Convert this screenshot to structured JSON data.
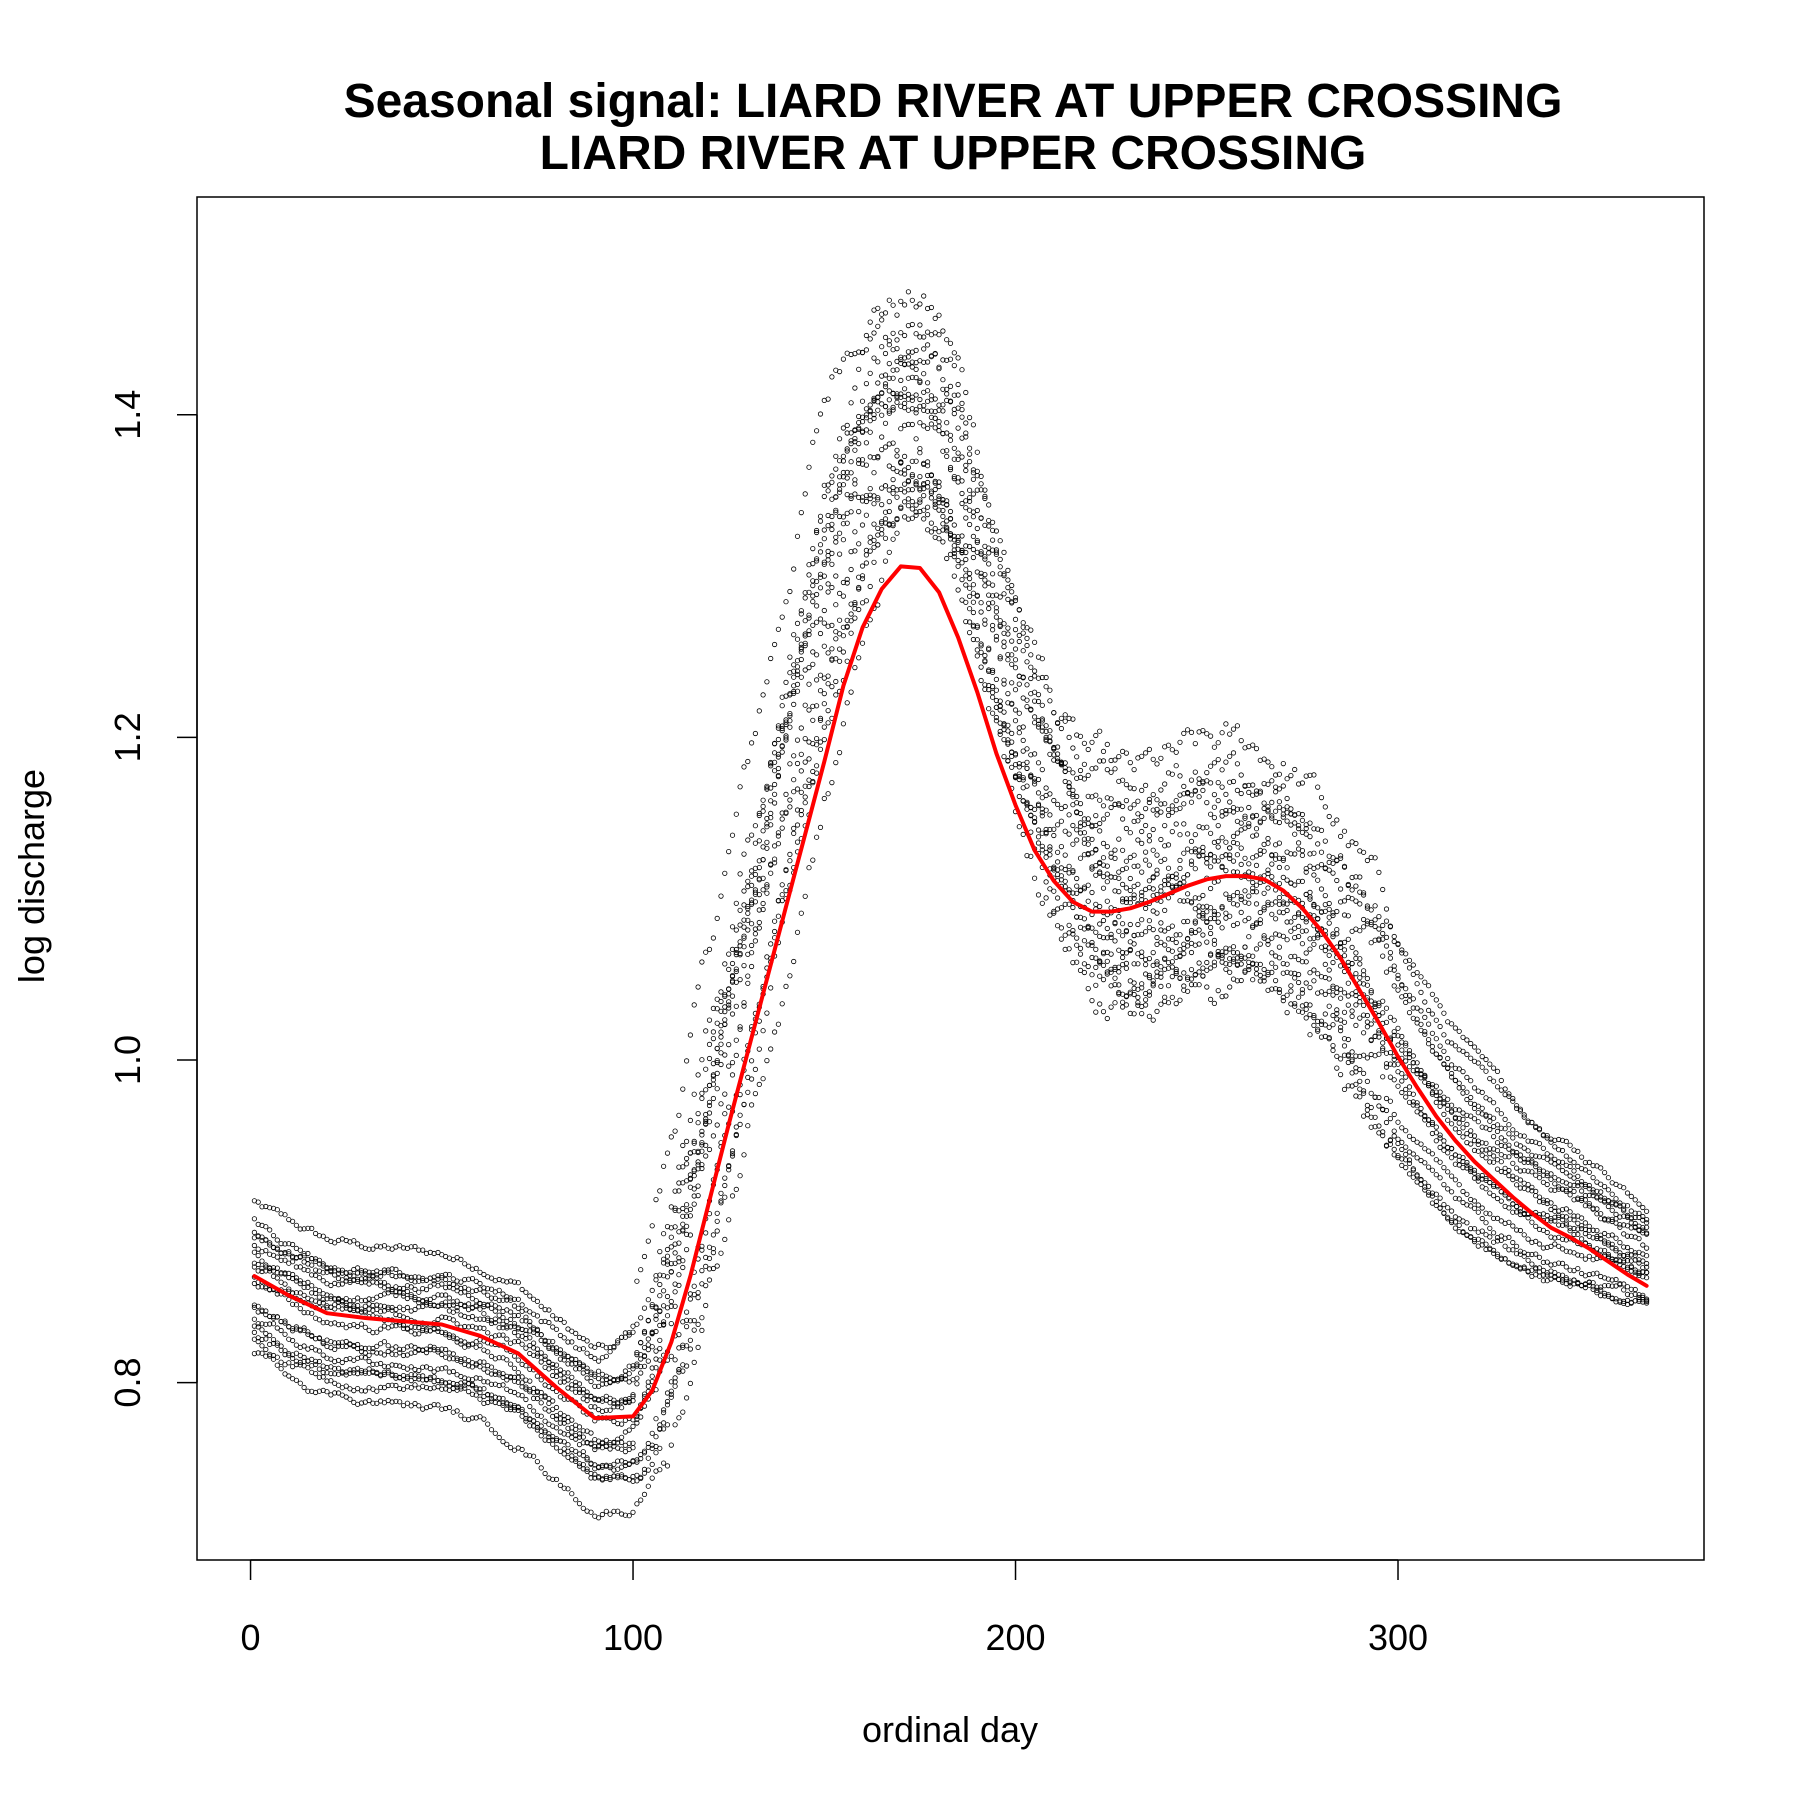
{
  "chart_data": {
    "type": "scatter",
    "title": [
      "Seasonal signal: LIARD RIVER AT UPPER CROSSING",
      "LIARD RIVER AT UPPER CROSSING"
    ],
    "xlabel": "ordinal day",
    "ylabel": "log discharge",
    "xlim": [
      -14,
      380
    ],
    "ylim": [
      0.69,
      1.535
    ],
    "x_ticks": [
      0,
      100,
      200,
      300
    ],
    "y_ticks": [
      0.8,
      1.0,
      1.2,
      1.4
    ],
    "x_tick_labels": [
      "0",
      "100",
      "200",
      "300"
    ],
    "y_tick_labels": [
      "0.8",
      "1.0",
      "1.2",
      "1.4"
    ],
    "grid": false,
    "legend": "none",
    "colors": {
      "points": "#000000",
      "smooth": "#ff0000"
    },
    "series": [
      {
        "kind": "points",
        "description": "daily log discharge for each year, days 1-365",
        "year_traces_estimated": [
          {
            "start": 0.912,
            "winter_min": 0.82,
            "min_day": 95
          },
          {
            "start": 0.9,
            "winter_min": 0.8,
            "min_day": 98
          },
          {
            "start": 0.895,
            "winter_min": 0.79,
            "min_day": 100
          },
          {
            "start": 0.89,
            "winter_min": 0.815,
            "min_day": 92
          },
          {
            "start": 0.885,
            "winter_min": 0.805,
            "min_day": 96
          },
          {
            "start": 0.88,
            "winter_min": 0.76,
            "min_day": 112
          },
          {
            "start": 0.875,
            "winter_min": 0.8,
            "min_day": 104
          },
          {
            "start": 0.87,
            "winter_min": 0.79,
            "min_day": 99
          },
          {
            "start": 0.865,
            "winter_min": 0.785,
            "min_day": 97
          },
          {
            "start": 0.86,
            "winter_min": 0.775,
            "min_day": 101
          },
          {
            "start": 0.85,
            "winter_min": 0.76,
            "min_day": 100
          },
          {
            "start": 0.845,
            "winter_min": 0.765,
            "min_day": 96
          },
          {
            "start": 0.84,
            "winter_min": 0.75,
            "min_day": 100
          },
          {
            "start": 0.835,
            "winter_min": 0.74,
            "min_day": 102
          },
          {
            "start": 0.83,
            "winter_min": 0.745,
            "min_day": 98
          },
          {
            "start": 0.825,
            "winter_min": 0.74,
            "min_day": 101
          },
          {
            "start": 0.82,
            "winter_min": 0.72,
            "min_day": 102
          }
        ],
        "peak_range": [
          1.17,
          1.5
        ],
        "end_range": [
          0.83,
          0.915
        ]
      },
      {
        "kind": "smooth",
        "description": "fitted seasonal signal",
        "x": [
          1,
          10,
          20,
          30,
          40,
          50,
          60,
          70,
          80,
          90,
          100,
          105,
          110,
          115,
          120,
          125,
          130,
          135,
          140,
          145,
          150,
          155,
          160,
          165,
          170,
          175,
          180,
          185,
          190,
          195,
          200,
          205,
          210,
          215,
          220,
          225,
          230,
          235,
          240,
          245,
          250,
          255,
          260,
          265,
          270,
          275,
          280,
          285,
          290,
          295,
          300,
          305,
          310,
          315,
          320,
          325,
          330,
          335,
          340,
          345,
          350,
          355,
          360,
          365
        ],
        "y": [
          0.866,
          0.854,
          0.843,
          0.84,
          0.838,
          0.836,
          0.829,
          0.818,
          0.797,
          0.778,
          0.779,
          0.795,
          0.825,
          0.866,
          0.913,
          0.96,
          1.005,
          1.05,
          1.095,
          1.14,
          1.185,
          1.232,
          1.268,
          1.292,
          1.306,
          1.305,
          1.29,
          1.262,
          1.228,
          1.19,
          1.158,
          1.13,
          1.111,
          1.098,
          1.092,
          1.092,
          1.094,
          1.098,
          1.103,
          1.108,
          1.112,
          1.114,
          1.114,
          1.112,
          1.105,
          1.094,
          1.08,
          1.063,
          1.043,
          1.023,
          1.002,
          0.983,
          0.965,
          0.95,
          0.937,
          0.926,
          0.915,
          0.905,
          0.896,
          0.89,
          0.883,
          0.875,
          0.867,
          0.86
        ]
      }
    ]
  }
}
